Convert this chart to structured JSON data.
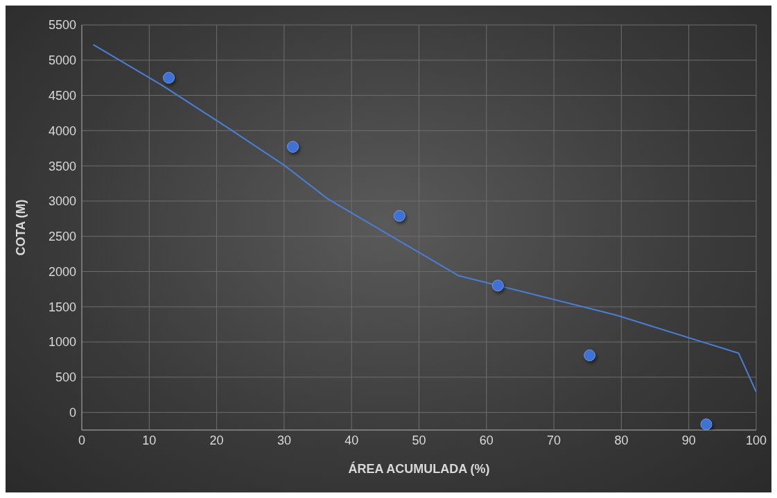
{
  "chart_data": {
    "type": "scatter",
    "xlabel": "ÁREA ACUMULADA (%)",
    "ylabel": "COTA (M)",
    "xlim": [
      0,
      100
    ],
    "xticks": [
      0,
      10,
      20,
      30,
      40,
      50,
      60,
      70,
      80,
      90,
      100
    ],
    "ylim": [
      -250,
      5500
    ],
    "yticks": [
      0,
      500,
      1000,
      1500,
      2000,
      2500,
      3000,
      3500,
      4000,
      4500,
      5000,
      5500
    ],
    "grid": true,
    "legend": false,
    "marker": "circle",
    "series": [
      {
        "color": "#3f72d4",
        "x": [
          12.9,
          31.3,
          47.1,
          61.7,
          75.3,
          92.6
        ],
        "values": [
          4750,
          3770,
          2790,
          1800,
          810,
          -170
        ]
      },
      {
        "type": "line",
        "color": "#4a7fd6",
        "marker": "none",
        "line_style": "solid",
        "x": [
          1.7,
          11.8,
          22,
          30,
          36.5,
          55.9,
          79.3,
          97.4,
          100
        ],
        "values": [
          5220,
          4650,
          4020,
          3510,
          3030,
          1940,
          1380,
          840,
          290
        ]
      }
    ]
  }
}
